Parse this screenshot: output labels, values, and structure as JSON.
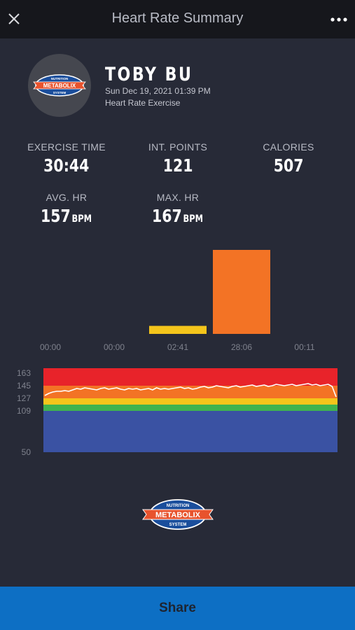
{
  "header": {
    "title": "Heart Rate Summary",
    "close_icon": "close-icon",
    "menu_icon": "more-horizontal-icon"
  },
  "logo": {
    "top_text": "NUTRITION",
    "main_text": "METABOLIX",
    "bottom_text": "SYSTEM",
    "colors": {
      "oval": "#1a4e9c",
      "banner": "#e8532d",
      "text": "#ffffff"
    }
  },
  "profile": {
    "name": "TOBY BU",
    "datetime": "Sun Dec 19, 2021 01:39 PM",
    "exercise_type": "Heart Rate Exercise"
  },
  "stats": {
    "exercise_time": {
      "label": "EXERCISE TIME",
      "value": "30:44"
    },
    "int_points": {
      "label": "INT. POINTS",
      "value": "121"
    },
    "calories": {
      "label": "CALORIES",
      "value": "507"
    },
    "avg_hr": {
      "label": "AVG. HR",
      "value": "157",
      "unit": "BPM"
    },
    "max_hr": {
      "label": "MAX. HR",
      "value": "167",
      "unit": "BPM"
    }
  },
  "chart_data": [
    {
      "type": "bar",
      "categories": [
        "00:00",
        "00:00",
        "02:41",
        "28:06",
        "00:11"
      ],
      "values": [
        0,
        0,
        161,
        1686,
        11
      ],
      "colors": [
        "#2f74c6",
        "#3fb34f",
        "#f4c51b",
        "#f37325",
        "#e8232a"
      ],
      "title": "",
      "xlabel": "",
      "ylabel": ""
    },
    {
      "type": "line",
      "zone_ticks": [
        "163",
        "145",
        "127",
        "109",
        "50"
      ],
      "zones": [
        {
          "from": 50,
          "to": 109,
          "color": "#3a52a3"
        },
        {
          "from": 109,
          "to": 118,
          "color": "#3fb34f"
        },
        {
          "from": 118,
          "to": 127,
          "color": "#f4c51b"
        },
        {
          "from": 127,
          "to": 145,
          "color": "#f37325"
        },
        {
          "from": 145,
          "to": 170,
          "color": "#e8232a"
        }
      ],
      "ylim": [
        50,
        170
      ],
      "line_color": "#ffffff",
      "series": [
        {
          "values": [
            131,
            134,
            136,
            137,
            137,
            138,
            137,
            139,
            141,
            140,
            142,
            141,
            140,
            139,
            141,
            142,
            140,
            141,
            142,
            140,
            139,
            141,
            140,
            141,
            139,
            140,
            141,
            139,
            142,
            140,
            141,
            140,
            141,
            142,
            143,
            141,
            142,
            140,
            141,
            143,
            144,
            142,
            143,
            145,
            144,
            143,
            142,
            144,
            145,
            143,
            144,
            145,
            146,
            144,
            145,
            146,
            144,
            145,
            147,
            146,
            145,
            146,
            147,
            145,
            146,
            147,
            148,
            146,
            147,
            145,
            146,
            147,
            144,
            129
          ]
        }
      ],
      "title": "",
      "xlabel": "",
      "ylabel": ""
    }
  ]
}
